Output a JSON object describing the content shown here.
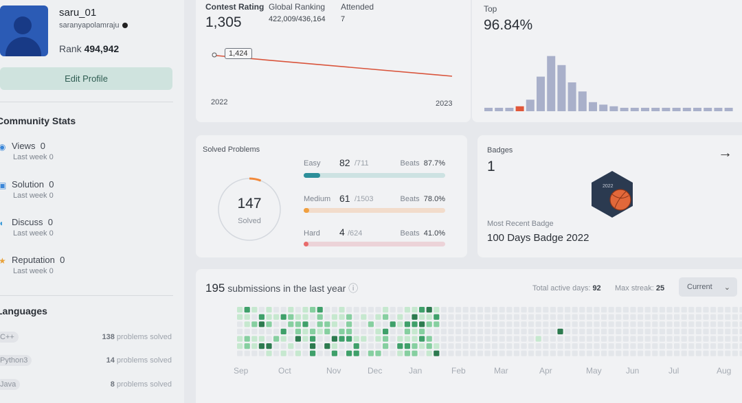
{
  "profile": {
    "username": "saru_01",
    "handle": "saranyapolamraju",
    "rank_label": "Rank",
    "rank_value": "494,942",
    "edit_button": "Edit Profile"
  },
  "community": {
    "title": "Community Stats",
    "items": [
      {
        "icon": "eye-icon",
        "label": "Views",
        "value": "0",
        "sub": "Last week 0",
        "color": "#3a86d8"
      },
      {
        "icon": "check-square-icon",
        "label": "Solution",
        "value": "0",
        "sub": "Last week 0",
        "color": "#3a86d8"
      },
      {
        "icon": "chat-icon",
        "label": "Discuss",
        "value": "0",
        "sub": "Last week 0",
        "color": "#3a9ad8"
      },
      {
        "icon": "star-icon",
        "label": "Reputation",
        "value": "0",
        "sub": "Last week 0",
        "color": "#e8a23a"
      }
    ]
  },
  "languages": {
    "title": "Languages",
    "items": [
      {
        "name": "C++",
        "count": "138",
        "suffix": "problems solved"
      },
      {
        "name": "Python3",
        "count": "14",
        "suffix": "problems solved"
      },
      {
        "name": "Java",
        "count": "8",
        "suffix": "problems solved"
      }
    ]
  },
  "contest": {
    "rating_label": "Contest Rating",
    "rating_value": "1,305",
    "global_label": "Global Ranking",
    "global_value": "422,009/436,164",
    "attended_label": "Attended",
    "attended_value": "7",
    "tooltip": "1,424",
    "year_start": "2022",
    "year_end": "2023",
    "line_color": "#d9533a"
  },
  "top": {
    "label": "Top",
    "value": "96.84%",
    "histogram": [
      0.03,
      0.03,
      0.03,
      0.06,
      0.14,
      0.42,
      0.67,
      0.56,
      0.35,
      0.24,
      0.11,
      0.08,
      0.06,
      0.04,
      0.04,
      0.03,
      0.03,
      0.03,
      0.03,
      0.03,
      0.03,
      0.03,
      0.03,
      0.03
    ],
    "highlight_index": 3,
    "bar_color": "#a9b0ca",
    "highlight_color": "#e0573a"
  },
  "solved": {
    "title": "Solved Problems",
    "total": "147",
    "total_label": "Solved",
    "ring_fraction": 0.06,
    "rows": [
      {
        "name": "Easy",
        "solved": "82",
        "total": "/711",
        "beats_label": "Beats",
        "beats": "87.7%",
        "fraction": 0.115,
        "bar_color": "#2d8f9a",
        "track_color": "#cde2e2"
      },
      {
        "name": "Medium",
        "solved": "61",
        "total": "/1503",
        "beats_label": "Beats",
        "beats": "78.0%",
        "fraction": 0.04,
        "bar_color": "#f0a040",
        "track_color": "#f2dccb"
      },
      {
        "name": "Hard",
        "solved": "4",
        "total": "/624",
        "beats_label": "Beats",
        "beats": "41.0%",
        "fraction": 0.006,
        "bar_color": "#e86b6b",
        "track_color": "#ecd3d8"
      }
    ]
  },
  "badges": {
    "title": "Badges",
    "count": "1",
    "recent_label": "Most Recent Badge",
    "recent_name": "100 Days Badge 2022",
    "badge_text": "2022",
    "arrow": "→"
  },
  "submissions": {
    "count": "195",
    "text": "submissions in the last year",
    "info": "ⓘ",
    "active_label": "Total active days:",
    "active_value": "92",
    "streak_label": "Max streak:",
    "streak_value": "25",
    "dropdown": "Current",
    "months": [
      "Sep",
      "Oct",
      "Nov",
      "Dec",
      "Jan",
      "Feb",
      "Mar",
      "Apr",
      "May",
      "Jun",
      "Jul",
      "Aug"
    ]
  }
}
